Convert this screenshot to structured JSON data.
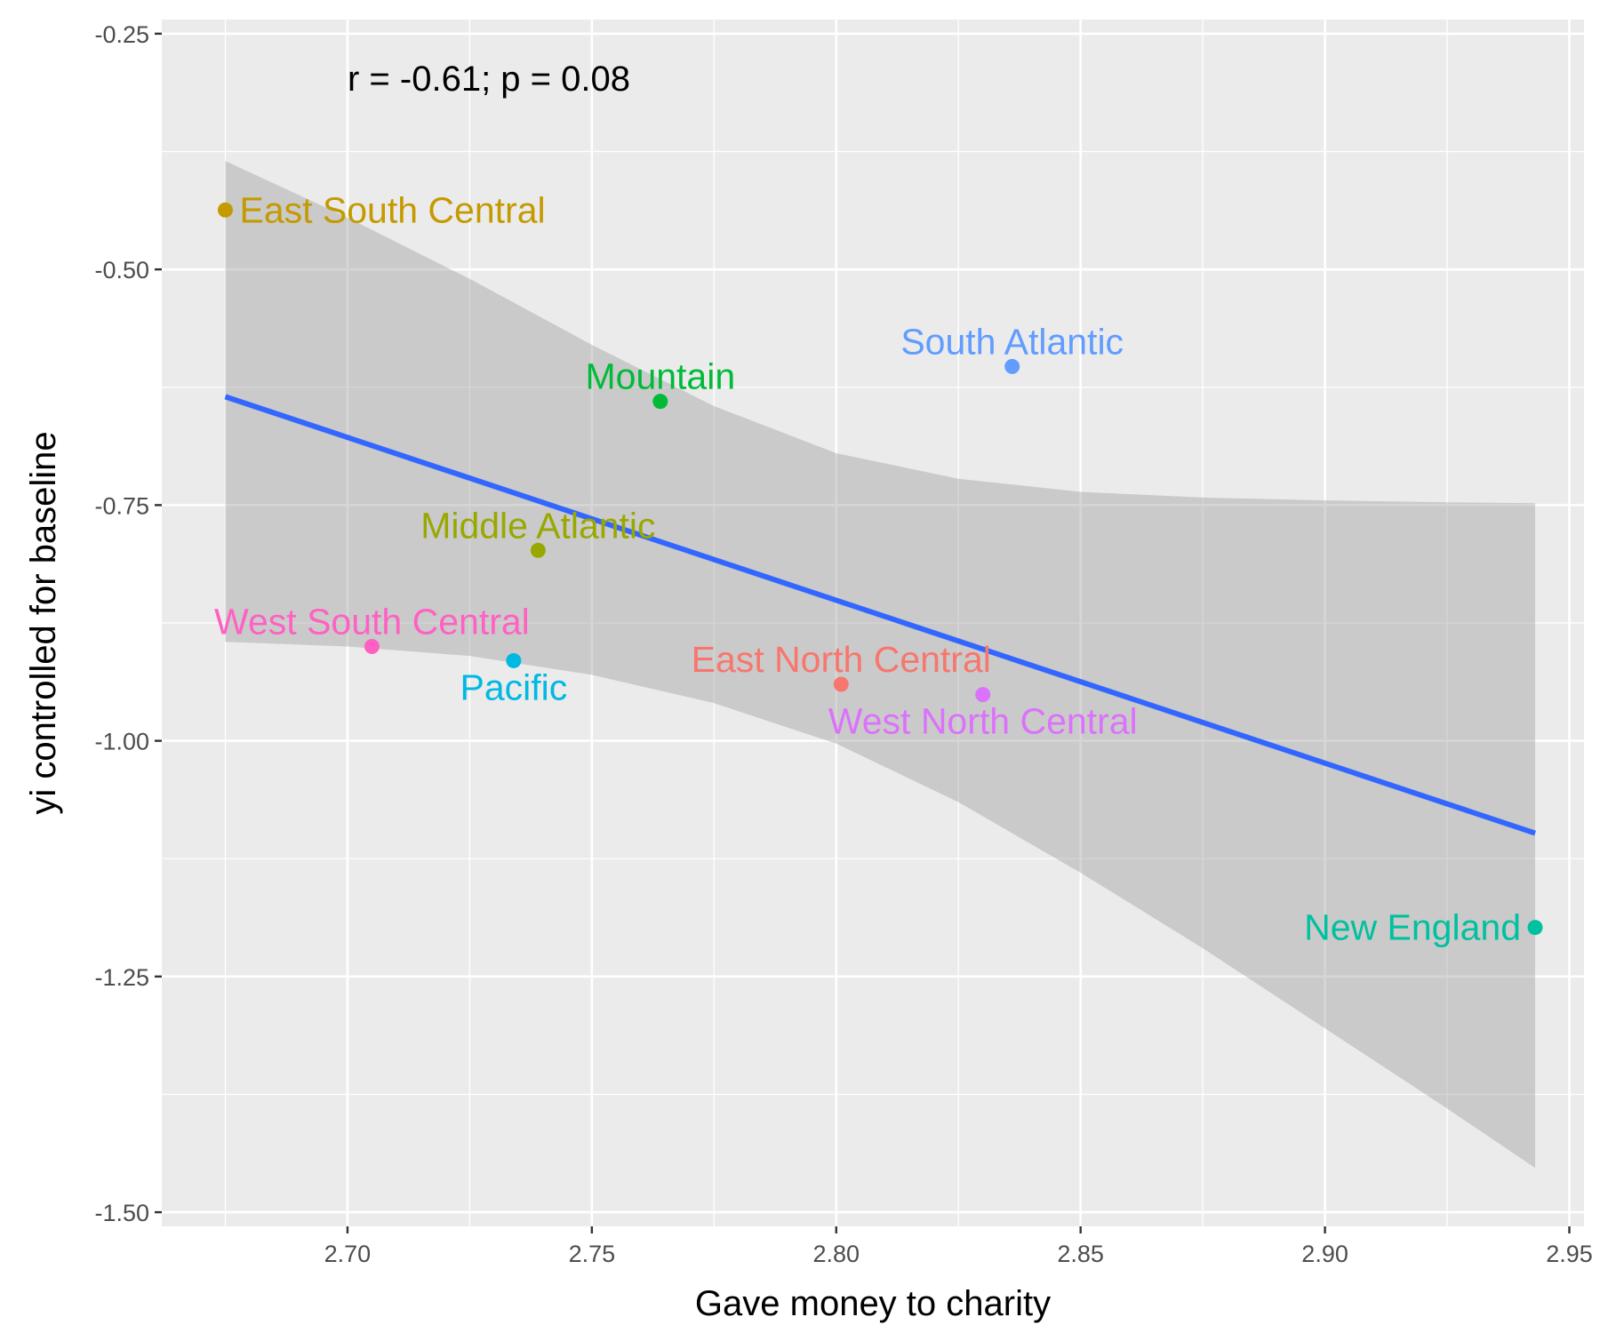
{
  "chart_data": {
    "type": "scatter",
    "title": "",
    "xlabel": "Gave money to charity",
    "ylabel": "yi controlled for baseline",
    "annotation": "r = -0.61; p = 0.08",
    "xlim": [
      2.662,
      2.953
    ],
    "ylim": [
      -1.515,
      -0.235
    ],
    "x_ticks": [
      2.7,
      2.75,
      2.8,
      2.85,
      2.9,
      2.95
    ],
    "x_tick_labels": [
      "2.70",
      "2.75",
      "2.80",
      "2.85",
      "2.90",
      "2.95"
    ],
    "y_ticks": [
      -0.25,
      -0.5,
      -0.75,
      -1.0,
      -1.25,
      -1.5
    ],
    "y_tick_labels": [
      "-0.25",
      "-0.50",
      "-0.75",
      "-1.00",
      "-1.25",
      "-1.50"
    ],
    "grid": true,
    "legend": "none",
    "points": [
      {
        "label": "East South Central",
        "x": 2.675,
        "y": -0.437,
        "color": "#C49A00",
        "label_anchor": "start"
      },
      {
        "label": "South Atlantic",
        "x": 2.836,
        "y": -0.603,
        "color": "#619CFF",
        "label_anchor": "middle"
      },
      {
        "label": "Mountain",
        "x": 2.764,
        "y": -0.64,
        "color": "#00BA38",
        "label_anchor": "middle"
      },
      {
        "label": "Middle Atlantic",
        "x": 2.739,
        "y": -0.798,
        "color": "#99A800",
        "label_anchor": "middle"
      },
      {
        "label": "West South Central",
        "x": 2.705,
        "y": -0.9,
        "color": "#FF61C3",
        "label_anchor": "middle"
      },
      {
        "label": "Pacific",
        "x": 2.734,
        "y": -0.915,
        "color": "#00B9E3",
        "label_anchor": "middle"
      },
      {
        "label": "East North Central",
        "x": 2.801,
        "y": -0.94,
        "color": "#F8766D",
        "label_anchor": "middle"
      },
      {
        "label": "West North Central",
        "x": 2.83,
        "y": -0.951,
        "color": "#DB72FB",
        "label_anchor": "middle"
      },
      {
        "label": "New England",
        "x": 2.943,
        "y": -1.198,
        "color": "#00C19F",
        "label_anchor": "end"
      }
    ],
    "fit_line": {
      "color": "#3366FF",
      "x": [
        2.675,
        2.943
      ],
      "y": [
        -0.635,
        -1.098
      ]
    },
    "confidence_band": {
      "color": "#999999",
      "x": [
        2.675,
        2.7,
        2.725,
        2.75,
        2.775,
        2.8,
        2.825,
        2.85,
        2.875,
        2.9,
        2.925,
        2.943
      ],
      "upper": [
        -0.385,
        -0.445,
        -0.51,
        -0.58,
        -0.645,
        -0.695,
        -0.722,
        -0.736,
        -0.742,
        -0.745,
        -0.747,
        -0.748
      ],
      "lower": [
        -0.895,
        -0.9,
        -0.91,
        -0.93,
        -0.96,
        -1.003,
        -1.065,
        -1.14,
        -1.22,
        -1.305,
        -1.39,
        -1.453
      ]
    }
  }
}
